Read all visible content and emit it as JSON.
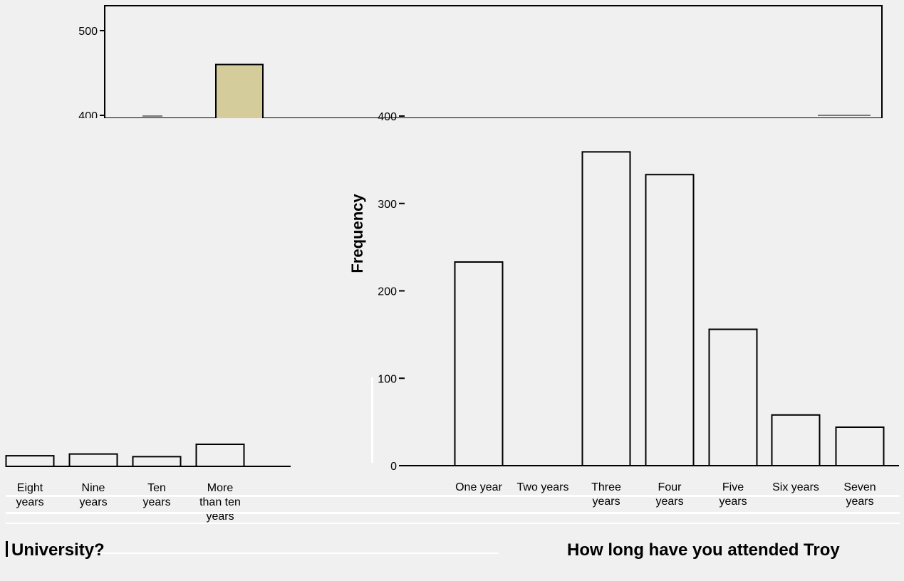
{
  "colors": {
    "background": "#f0f0f0",
    "plot_background": "#f0f0f0",
    "bar_fill_back": "#d4cc9a",
    "bar_fill_front": "#f0f0f0",
    "bar_stroke": "#000000"
  },
  "chart_data": [
    {
      "type": "bar",
      "title": "How long have you attended Troy",
      "ylabel": "Frequency",
      "xlabel": "",
      "ylim": [
        0,
        400
      ],
      "yticks": [
        0,
        100,
        200,
        300,
        400
      ],
      "categories": [
        "One year",
        "Two years",
        "Three years",
        "Four years",
        "Five years",
        "Six years",
        "Seven years"
      ],
      "values": [
        233,
        0,
        359,
        333,
        156,
        58,
        44
      ],
      "grid": false
    },
    {
      "type": "bar",
      "title": "University?",
      "ylabel": "",
      "xlabel": "",
      "ylim": [
        0,
        500
      ],
      "yticks": [
        400,
        500
      ],
      "categories": [
        "Eight years",
        "Nine years",
        "Ten years",
        "More than ten years"
      ],
      "values": [
        12,
        14,
        11,
        25
      ],
      "partial_values": [
        460
      ],
      "grid": false
    }
  ]
}
